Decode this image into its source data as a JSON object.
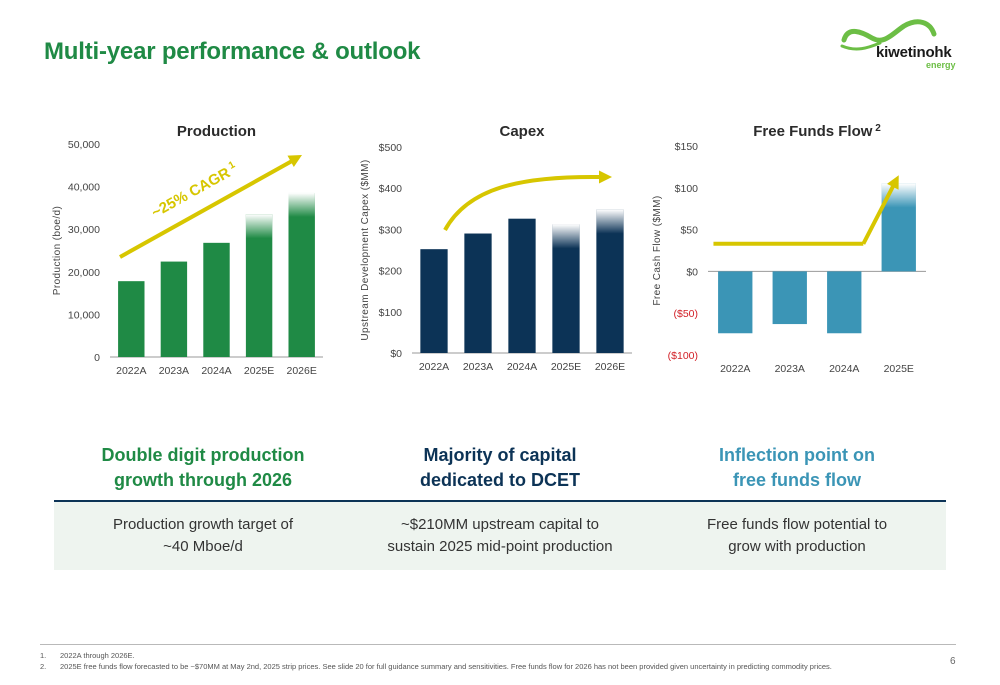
{
  "page": {
    "title": "Multi-year performance & outlook",
    "page_number": "6"
  },
  "logo": {
    "name": "kiwetinohk",
    "sub": "energy",
    "colors": {
      "swoosh": "#6cbe45",
      "text": "#1a1a1a"
    }
  },
  "colors": {
    "green": "#1f8a45",
    "navy": "#0c3356",
    "teal": "#3b95b6",
    "arrow": "#d7c600",
    "negative_label": "#d21f26"
  },
  "chart_data": [
    {
      "type": "bar",
      "title": "Production",
      "ylabel": "Production (boe/d)",
      "categories": [
        "2022A",
        "2023A",
        "2024A",
        "2025E",
        "2026E"
      ],
      "values": [
        17800,
        22400,
        26800,
        33500,
        38500
      ],
      "ylim": [
        0,
        50000
      ],
      "yticks": [
        0,
        10000,
        20000,
        30000,
        40000,
        50000
      ],
      "ytick_labels": [
        "0",
        "10,000",
        "20,000",
        "30,000",
        "40,000",
        "50,000"
      ],
      "faded_top_categories": [
        "2025E",
        "2026E"
      ],
      "annotation": {
        "text": "~25% CAGR",
        "superscript": "1"
      },
      "grid": false,
      "color": "#1f8a45"
    },
    {
      "type": "bar",
      "title": "Capex",
      "ylabel": "Upstream Development Capex ($MM)",
      "categories": [
        "2022A",
        "2023A",
        "2024A",
        "2025E",
        "2026E"
      ],
      "values": [
        252,
        290,
        326,
        312,
        348
      ],
      "ylim": [
        0,
        500
      ],
      "yticks": [
        0,
        100,
        200,
        300,
        400,
        500
      ],
      "ytick_labels": [
        "$0",
        "$100",
        "$200",
        "$300",
        "$400",
        "$500"
      ],
      "faded_top_categories": [
        "2025E",
        "2026E"
      ],
      "grid": false,
      "color": "#0c3356"
    },
    {
      "type": "bar",
      "title": "Free Funds Flow",
      "title_superscript": "2",
      "ylabel": "Free Cash Flow ($MM)",
      "categories": [
        "2022A",
        "2023A",
        "2024A",
        "2025E"
      ],
      "values": [
        -74,
        -63,
        -74,
        105
      ],
      "ylim": [
        -100,
        150
      ],
      "yticks": [
        -100,
        -50,
        0,
        50,
        100,
        150
      ],
      "ytick_labels": [
        "($100)",
        "($50)",
        "$0",
        "$50",
        "$100",
        "$150"
      ],
      "faded_top_categories": [
        "2025E"
      ],
      "trend_line": [
        33,
        33,
        33,
        115
      ],
      "grid": false,
      "color": "#3b95b6"
    }
  ],
  "columns": [
    {
      "headline": "Double digit production\ngrowth through 2026",
      "body": "Production growth target of\n~40 Mboe/d",
      "color": "#1f8a45"
    },
    {
      "headline": "Majority of capital\ndedicated to DCET",
      "body": "~$210MM upstream capital to\nsustain 2025 mid-point production",
      "color": "#0c3356"
    },
    {
      "headline": "Inflection point on\nfree funds flow",
      "body": "Free funds flow potential to\ngrow with production",
      "color": "#3b95b6"
    }
  ],
  "footnotes": [
    {
      "num": "1.",
      "text": "2022A through 2026E."
    },
    {
      "num": "2.",
      "text": "2025E free funds flow forecasted to be ~$70MM at May 2nd, 2025 strip prices. See slide 20 for full guidance summary and sensitivities. Free funds flow for 2026 has not been provided given uncertainty in predicting commodity prices."
    }
  ]
}
